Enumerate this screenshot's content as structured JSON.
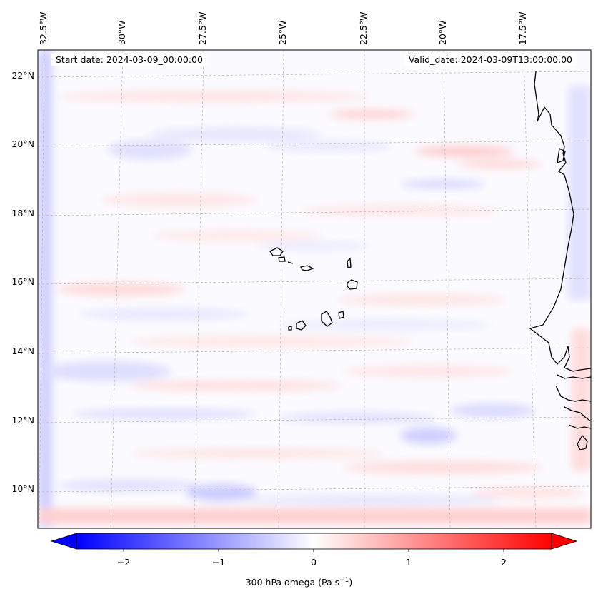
{
  "map": {
    "variable_label": "300 hPa omega (Pa s",
    "units_superscript": "−1",
    "units_close": ")",
    "start_date": "Start date: 2024-03-09_00:00:00",
    "valid_date": "Valid_date: 2024-03-09T13:00:00.00",
    "lon_labels": [
      "32.5°W",
      "30°W",
      "27.5°W",
      "25°W",
      "22.5°W",
      "20°W",
      "17.5°W"
    ],
    "lat_labels": [
      "22°N",
      "20°N",
      "18°N",
      "16°N",
      "14°N",
      "12°N",
      "10°N"
    ],
    "colorbar": {
      "ticks": [
        "−2",
        "−1",
        "0",
        "1",
        "2"
      ],
      "tick_values": [
        -2,
        -1,
        0,
        1,
        2
      ],
      "min": -2.5,
      "max": 2.5,
      "colormap": "bwr",
      "low_color": "#0000ff",
      "mid_color": "#ffffff",
      "high_color": "#ff0000"
    }
  }
}
